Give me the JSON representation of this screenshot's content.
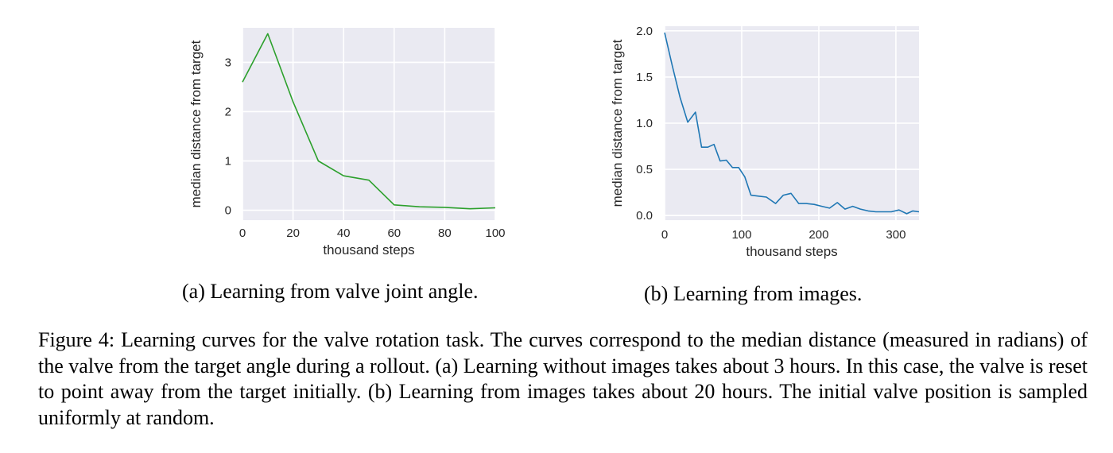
{
  "chart_data": [
    {
      "type": "line",
      "xlabel": "thousand steps",
      "ylabel": "median distance from target",
      "xlim": [
        0,
        100
      ],
      "ylim": [
        -0.2,
        3.7
      ],
      "xticks": [
        0,
        20,
        40,
        60,
        80,
        100
      ],
      "yticks": [
        0,
        1,
        2,
        3
      ],
      "grid": true,
      "color": "#2ca02c",
      "x": [
        0,
        10,
        20,
        30,
        40,
        50,
        60,
        70,
        80,
        90,
        100
      ],
      "y": [
        2.6,
        3.58,
        2.2,
        1.0,
        0.7,
        0.61,
        0.11,
        0.07,
        0.06,
        0.03,
        0.05
      ]
    },
    {
      "type": "line",
      "xlabel": "thousand steps",
      "ylabel": "median distance from target",
      "xlim": [
        0,
        330
      ],
      "ylim": [
        -0.05,
        2.05
      ],
      "xticks": [
        0,
        100,
        200,
        300
      ],
      "yticks": [
        0.0,
        0.5,
        1.0,
        1.5,
        2.0
      ],
      "ytick_labels": [
        "0.0",
        "0.5",
        "1.0",
        "1.5",
        "2.0"
      ],
      "grid": true,
      "color": "#1f77b4",
      "x": [
        0,
        10,
        20,
        30,
        40,
        48,
        56,
        64,
        72,
        80,
        88,
        96,
        104,
        112,
        122,
        132,
        144,
        154,
        164,
        174,
        184,
        194,
        204,
        214,
        224,
        234,
        244,
        254,
        264,
        274,
        284,
        294,
        304,
        314,
        322,
        330
      ],
      "y": [
        1.98,
        1.62,
        1.28,
        1.01,
        1.12,
        0.74,
        0.74,
        0.77,
        0.59,
        0.6,
        0.52,
        0.52,
        0.42,
        0.22,
        0.21,
        0.2,
        0.13,
        0.22,
        0.24,
        0.13,
        0.13,
        0.12,
        0.1,
        0.08,
        0.14,
        0.07,
        0.1,
        0.07,
        0.05,
        0.04,
        0.04,
        0.04,
        0.06,
        0.02,
        0.05,
        0.04
      ]
    }
  ],
  "subcaptions": {
    "a": "(a) Learning from valve joint angle.",
    "b": "(b) Learning from images."
  },
  "caption": {
    "label": "Figure 4:",
    "text": "Learning curves for the valve rotation task. The curves correspond to the median distance (measured in radians) of the valve from the target angle during a rollout. (a) Learning without images takes about 3 hours. In this case, the valve is reset to point away from the target initially. (b) Learning from images takes about 20 hours. The initial valve position is sampled uniformly at random."
  }
}
